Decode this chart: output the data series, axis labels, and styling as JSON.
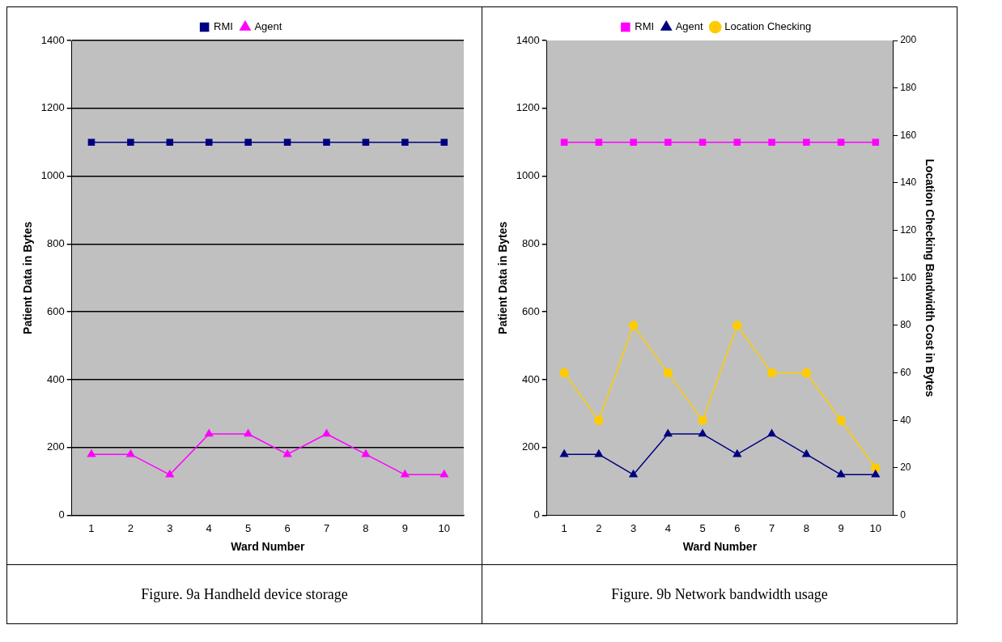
{
  "chart_data": [
    {
      "type": "line",
      "categories": [
        "1",
        "2",
        "3",
        "4",
        "5",
        "6",
        "7",
        "8",
        "9",
        "10"
      ],
      "xlabel": "Ward Number",
      "ylabel": "Patient Data in Bytes",
      "ylim": [
        0,
        1400
      ],
      "yticks": [
        0,
        200,
        400,
        600,
        800,
        1000,
        1200,
        1400
      ],
      "grid": "y",
      "legend": "top",
      "series": [
        {
          "name": "RMI",
          "color": "#000080",
          "marker": "square",
          "values": [
            1100,
            1100,
            1100,
            1100,
            1100,
            1100,
            1100,
            1100,
            1100,
            1100
          ]
        },
        {
          "name": "Agent",
          "color": "#ff00ff",
          "marker": "triangle",
          "values": [
            180,
            180,
            120,
            240,
            240,
            180,
            240,
            180,
            120,
            120
          ]
        }
      ],
      "annotations": [
        "Figure. 9a Handheld device storage"
      ]
    },
    {
      "type": "line",
      "categories": [
        "1",
        "2",
        "3",
        "4",
        "5",
        "6",
        "7",
        "8",
        "9",
        "10"
      ],
      "xlabel": "Ward Number",
      "ylabel": "Patient Data in Bytes",
      "y2label": "Location Checking Bandwidth Cost in Bytes",
      "ylim": [
        0,
        1400
      ],
      "yticks": [
        0,
        200,
        400,
        600,
        800,
        1000,
        1200,
        1400
      ],
      "y2lim": [
        0,
        200
      ],
      "y2ticks": [
        0,
        20,
        40,
        60,
        80,
        100,
        120,
        140,
        160,
        180,
        200
      ],
      "grid": false,
      "legend": "top",
      "series": [
        {
          "name": "RMI",
          "color": "#ff00ff",
          "marker": "square",
          "values": [
            1100,
            1100,
            1100,
            1100,
            1100,
            1100,
            1100,
            1100,
            1100,
            1100
          ]
        },
        {
          "name": "Agent",
          "color": "#000080",
          "marker": "triangle",
          "values": [
            180,
            180,
            120,
            240,
            240,
            180,
            240,
            180,
            120,
            120
          ]
        },
        {
          "name": "Location Checking",
          "color": "#ffcc00",
          "marker": "circle",
          "axis": "y2",
          "values": [
            60,
            40,
            80,
            60,
            40,
            80,
            60,
            60,
            40,
            20
          ]
        }
      ],
      "annotations": [
        "Figure. 9b Network bandwidth usage"
      ]
    }
  ]
}
